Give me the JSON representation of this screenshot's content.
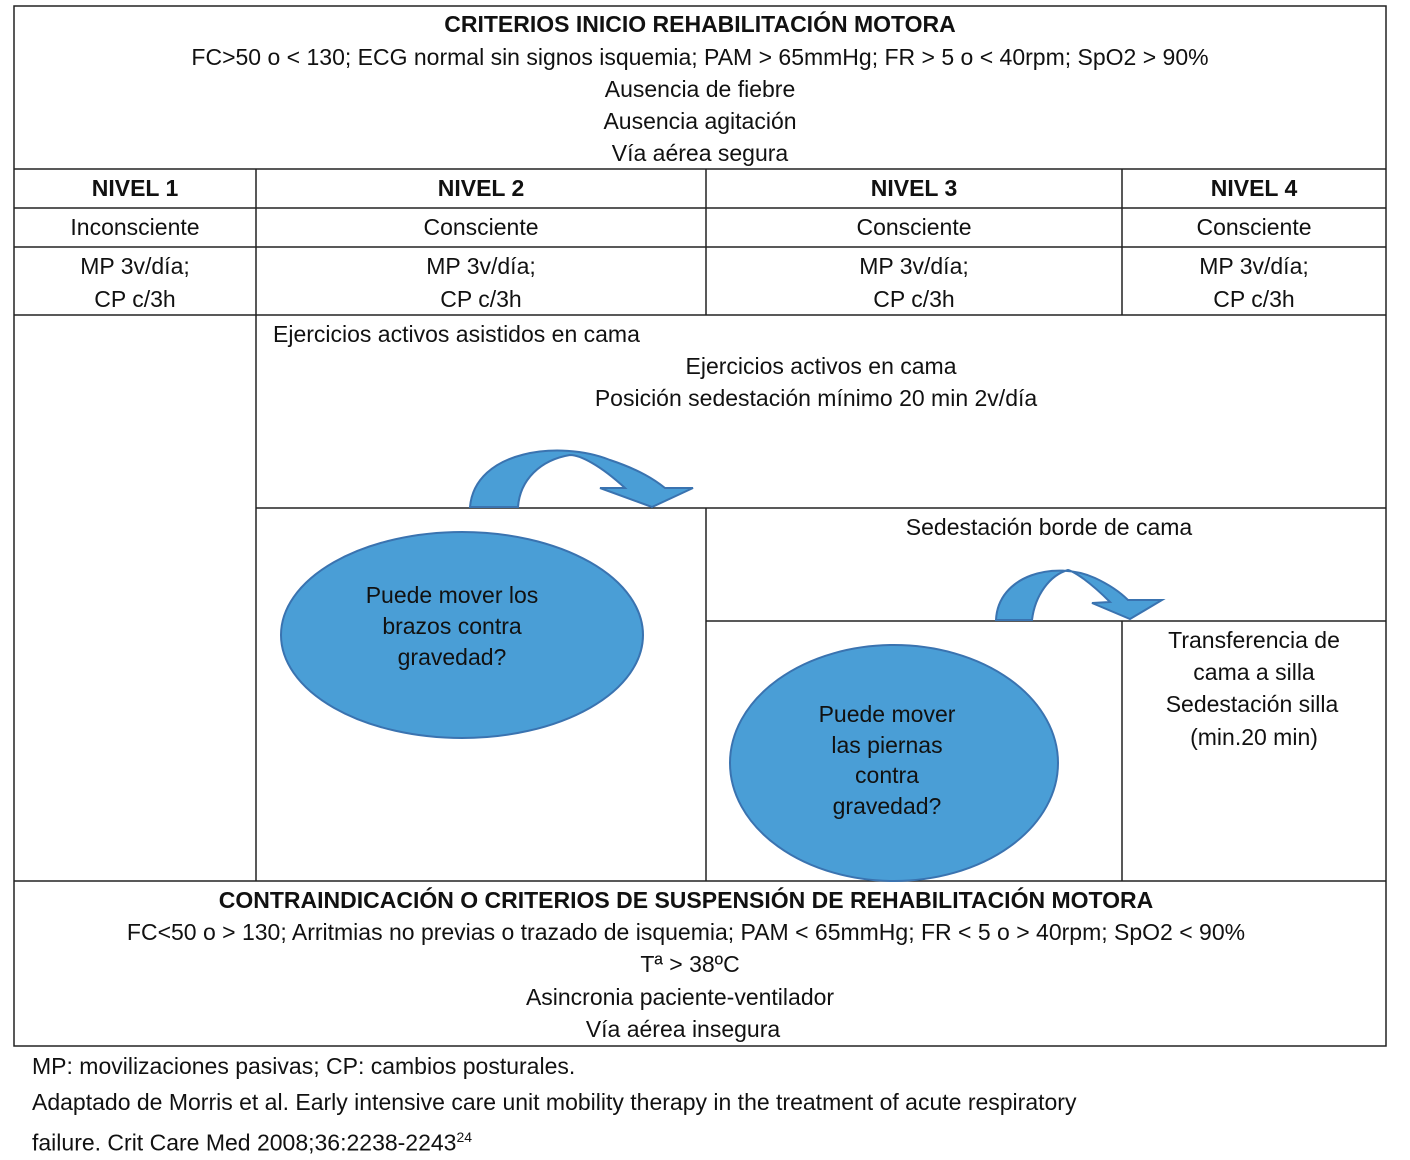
{
  "start_criteria": {
    "title": "CRITERIOS INICIO REHABILITACIÓN MOTORA",
    "lines": [
      "FC>50 o < 130; ECG normal sin signos isquemia; PAM > 65mmHg; FR > 5 o < 40rpm; SpO2 > 90%",
      "Ausencia de fiebre",
      "Ausencia agitación",
      "Vía aérea segura"
    ]
  },
  "levels": [
    {
      "name": "NIVEL 1",
      "state": "Inconsciente",
      "care1": "MP 3v/día;",
      "care2": "CP c/3h"
    },
    {
      "name": "NIVEL 2",
      "state": "Consciente",
      "care1": "MP 3v/día;",
      "care2": "CP c/3h"
    },
    {
      "name": "NIVEL 3",
      "state": "Consciente",
      "care1": "MP 3v/día;",
      "care2": "CP c/3h"
    },
    {
      "name": "NIVEL 4",
      "state": "Consciente",
      "care1": "MP 3v/día;",
      "care2": "CP c/3h"
    }
  ],
  "activities": {
    "assisted": "Ejercicios activos asistidos en cama",
    "active": "Ejercicios activos en cama",
    "sitting": "Posición sedestación mínimo 20 min 2v/día",
    "edge": "Sedestación borde de cama",
    "transfer": [
      "Transferencia de",
      "cama a silla",
      "Sedestación silla",
      "(min.20 min)"
    ]
  },
  "questions": {
    "arms": [
      "Puede mover los",
      "brazos contra",
      "gravedad?"
    ],
    "legs": [
      "Puede mover",
      "las piernas",
      "contra",
      "gravedad?"
    ]
  },
  "stop_criteria": {
    "title": "CONTRAINDICACIÓN O CRITERIOS DE SUSPENSIÓN DE REHABILITACIÓN MOTORA",
    "lines": [
      "FC<50 o > 130; Arritmias no previas o trazado de isquemia; PAM < 65mmHg; FR < 5 o > 40rpm; SpO2 < 90%",
      "Tª > 38ºC",
      "Asincronia paciente-ventilador",
      "Vía aérea insegura"
    ]
  },
  "footnotes": {
    "abbrev": "MP: movilizaciones pasivas; CP: cambios posturales.",
    "source1": "Adaptado de Morris et al. Early intensive care unit mobility therapy in the treatment of acute respiratory",
    "source2": "failure. Crit Care Med 2008;36:2238-2243",
    "ref": "24"
  },
  "colors": {
    "shape_fill": "#4a9ed6",
    "shape_stroke": "#3a73b0"
  }
}
